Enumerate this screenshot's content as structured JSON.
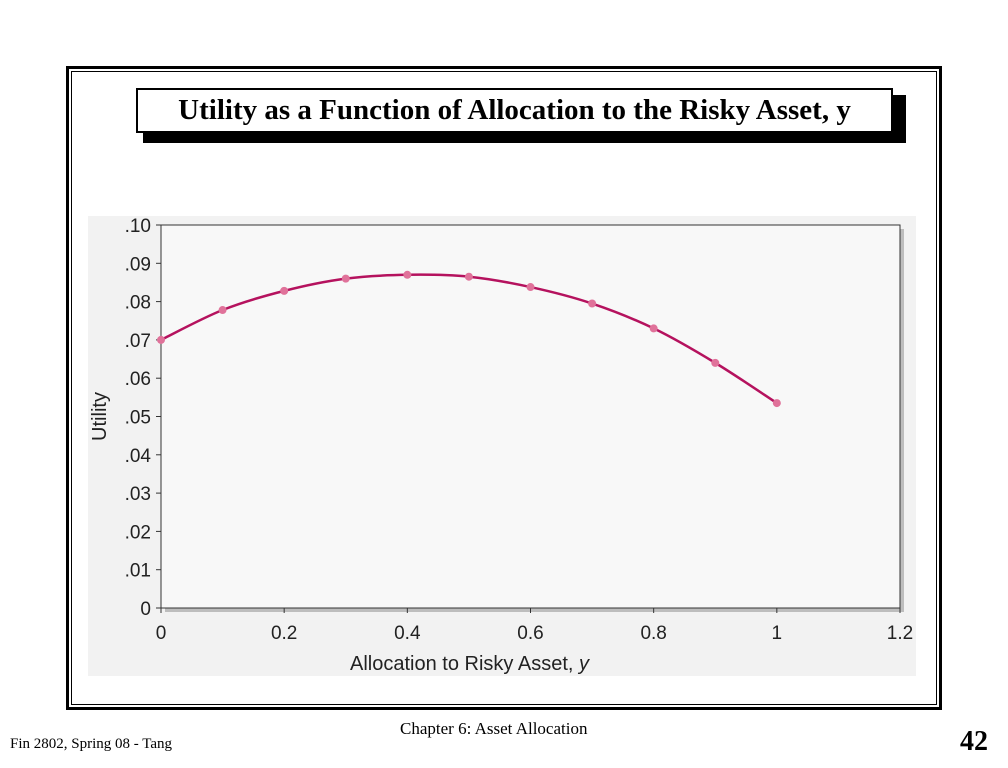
{
  "slide": {
    "title": "Utility as a Function of Allocation to the Risky Asset, y",
    "footer_left": "Fin 2802, Spring 08 - Tang",
    "footer_center": "Chapter 6: Asset Allocation",
    "page_number": "42"
  },
  "colors": {
    "curve": "#b5125e",
    "points": "#e0729a",
    "panel": "#f2f2f2",
    "plot": "#f8f8f8"
  },
  "chart_data": {
    "type": "line",
    "title": "",
    "xlabel": "Allocation to Risky Asset, y",
    "ylabel": "Utility",
    "xlim": [
      0,
      1.2
    ],
    "ylim": [
      0,
      0.1
    ],
    "x_ticks": [
      "0",
      "0.2",
      "0.4",
      "0.6",
      "0.8",
      "1",
      "1.2"
    ],
    "y_ticks": [
      "0",
      ".01",
      ".02",
      ".03",
      ".04",
      ".05",
      ".06",
      ".07",
      ".08",
      ".09",
      ".10"
    ],
    "grid": false,
    "series": [
      {
        "x": [
          0,
          0.1,
          0.2,
          0.3,
          0.4,
          0.5,
          0.6,
          0.7,
          0.8,
          0.9,
          1.0
        ],
        "y": [
          0.07,
          0.0778,
          0.0828,
          0.086,
          0.087,
          0.0865,
          0.0838,
          0.0795,
          0.073,
          0.064,
          0.0535
        ]
      }
    ]
  }
}
